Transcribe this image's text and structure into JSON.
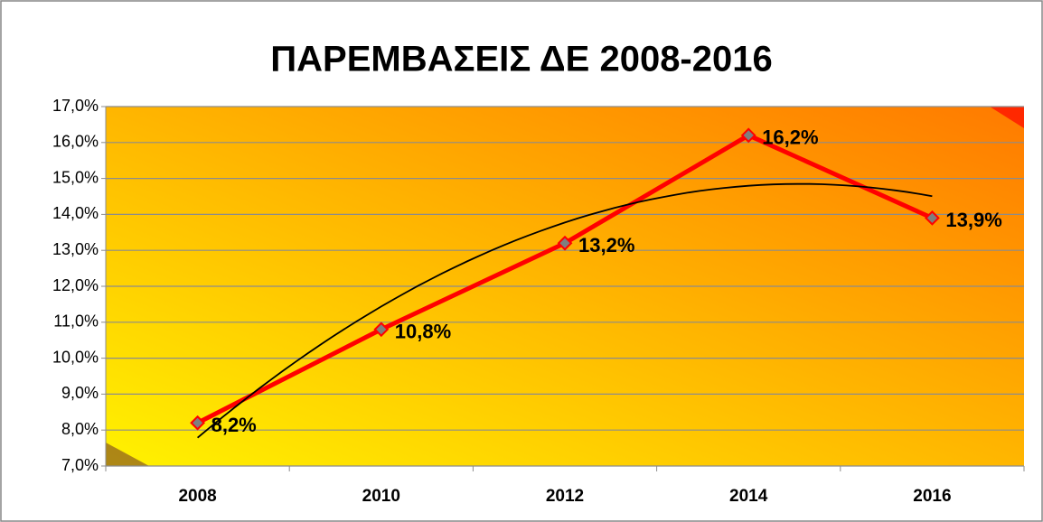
{
  "chart_data": {
    "type": "line",
    "title": "ΠΑΡΕΜΒΑΣΕΙΣ ΔΕ 2008-2016",
    "categories": [
      "2008",
      "2010",
      "2012",
      "2014",
      "2016"
    ],
    "series": [
      {
        "name": "ΠΑΡΕΜΒΑΣΕΙΣ ΔΕ",
        "color": "#ff0000",
        "marker_color": "#7f7f7f",
        "values": [
          8.2,
          10.8,
          13.2,
          16.2,
          13.9
        ],
        "value_labels": [
          "8,2%",
          "10,8%",
          "13,2%",
          "16,2%",
          "13,9%"
        ]
      }
    ],
    "ylim": [
      7,
      17
    ],
    "yticks": [
      {
        "value": 7,
        "label": "7,0%"
      },
      {
        "value": 8,
        "label": "8,0%"
      },
      {
        "value": 9,
        "label": "9,0%"
      },
      {
        "value": 10,
        "label": "10,0%"
      },
      {
        "value": 11,
        "label": "11,0%"
      },
      {
        "value": 12,
        "label": "12,0%"
      },
      {
        "value": 13,
        "label": "13,0%"
      },
      {
        "value": 14,
        "label": "14,0%"
      },
      {
        "value": 15,
        "label": "15,0%"
      },
      {
        "value": 16,
        "label": "16,0%"
      },
      {
        "value": 17,
        "label": "17,0%"
      }
    ],
    "grid": true,
    "trendline": {
      "type": "polynomial",
      "order": 2,
      "color": "#000000"
    }
  }
}
